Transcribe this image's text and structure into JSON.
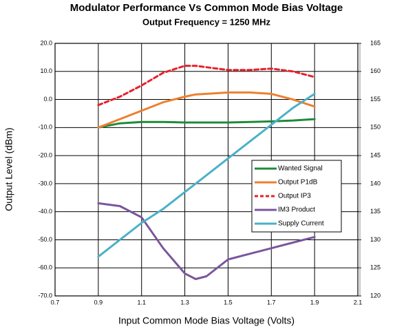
{
  "chart_data": {
    "type": "line",
    "title": "Modulator Performance Vs Common Mode Bias Voltage",
    "subtitle": "Output Frequency = 1250 MHz",
    "x_label": "Input Common Mode Bias Voltage (Volts)",
    "y_label": "Output Level (dBm)",
    "x": [
      0.9,
      1.0,
      1.1,
      1.2,
      1.3,
      1.35,
      1.4,
      1.5,
      1.6,
      1.7,
      1.8,
      1.9
    ],
    "series": [
      {
        "name": "Wanted Signal",
        "color": "#1f8a3a",
        "values": [
          -10,
          -8.5,
          -8,
          -8,
          -8.2,
          -8.2,
          -8.2,
          -8.2,
          -8,
          -7.8,
          -7.5,
          -7
        ]
      },
      {
        "name": "Output P1dB",
        "color": "#ee7f2d",
        "values": [
          -10,
          -7,
          -4,
          -1,
          1,
          1.8,
          2,
          2.5,
          2.5,
          2,
          0,
          -2.5
        ]
      },
      {
        "name": "Output IP3",
        "color": "#e8202a",
        "dashed": true,
        "values": [
          -2,
          1,
          5,
          9.5,
          12,
          12,
          11.5,
          10.5,
          10.5,
          11,
          10,
          8
        ]
      },
      {
        "name": "IM3 Product",
        "color": "#7a559c",
        "values": [
          -37,
          -38,
          -42,
          -53,
          -62,
          -64,
          -63,
          -57,
          -55,
          -53,
          -51,
          -49
        ]
      },
      {
        "name": "Supply Current",
        "color": "#4ab0c8",
        "axis": "y2",
        "values": [
          127,
          130,
          133,
          135.5,
          138.5,
          140,
          141.5,
          144.5,
          147.5,
          150.5,
          153.5,
          156
        ]
      }
    ],
    "xlim": [
      0.7,
      2.1
    ],
    "xticks": [
      0.7,
      0.9,
      1.1,
      1.3,
      1.5,
      1.7,
      1.9,
      2.1
    ],
    "ylim": [
      -70,
      20
    ],
    "yticks": [
      {
        "value": -70,
        "label": "-70.0"
      },
      {
        "value": -60,
        "label": "-60.0"
      },
      {
        "value": -50,
        "label": "-50.0"
      },
      {
        "value": -40,
        "label": "-40.0"
      },
      {
        "value": -30,
        "label": "-30.0"
      },
      {
        "value": -20,
        "label": "-20.0"
      },
      {
        "value": -10,
        "label": "-10.0"
      },
      {
        "value": 0,
        "label": "0.0"
      },
      {
        "value": 10,
        "label": "10.0"
      },
      {
        "value": 20,
        "label": "20.0"
      }
    ],
    "y2lim": [
      120,
      165
    ],
    "y2ticks": [
      120,
      125,
      130,
      135,
      140,
      145,
      150,
      155,
      160,
      165
    ],
    "grid": true,
    "legend": "right"
  }
}
